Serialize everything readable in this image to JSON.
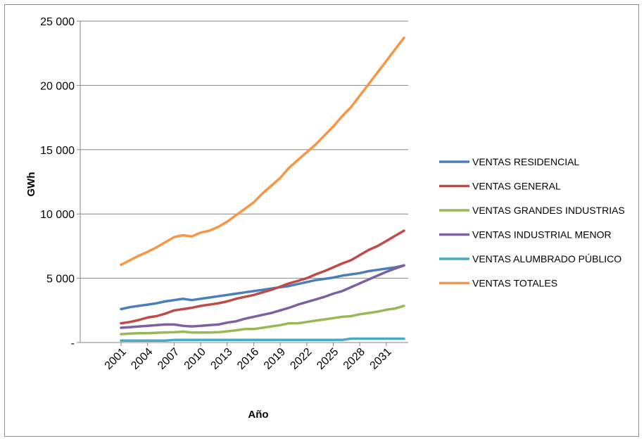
{
  "chart_data": {
    "type": "line",
    "xlabel": "Año",
    "ylabel": "GWh",
    "ylim": [
      0,
      25000
    ],
    "y_ticks": [
      {
        "value": 0,
        "label": "-"
      },
      {
        "value": 5000,
        "label": "5 000"
      },
      {
        "value": 10000,
        "label": "10 000"
      },
      {
        "value": 15000,
        "label": "15 000"
      },
      {
        "value": 20000,
        "label": "20 000"
      },
      {
        "value": 25000,
        "label": "25 000"
      }
    ],
    "grid": true,
    "legend_position": "right",
    "x": [
      2001,
      2002,
      2003,
      2004,
      2005,
      2006,
      2007,
      2008,
      2009,
      2010,
      2011,
      2012,
      2013,
      2014,
      2015,
      2016,
      2017,
      2018,
      2019,
      2020,
      2021,
      2022,
      2023,
      2024,
      2025,
      2026,
      2027,
      2028,
      2029,
      2030,
      2031,
      2032,
      2033
    ],
    "x_tick_labels": [
      "2001",
      "2004",
      "2007",
      "2010",
      "2013",
      "2016",
      "2019",
      "2022",
      "2025",
      "2028",
      "2031"
    ],
    "series": [
      {
        "name": "VENTAS RESIDENCIAL",
        "color": "#4a7ebb",
        "values": [
          2600,
          2750,
          2850,
          2950,
          3050,
          3200,
          3300,
          3400,
          3300,
          3400,
          3500,
          3600,
          3700,
          3800,
          3900,
          4000,
          4100,
          4200,
          4300,
          4400,
          4550,
          4700,
          4850,
          4950,
          5050,
          5200,
          5300,
          5400,
          5550,
          5650,
          5750,
          5850,
          6000
        ]
      },
      {
        "name": "VENTAS GENERAL",
        "color": "#be4b48",
        "values": [
          1500,
          1600,
          1750,
          1950,
          2050,
          2250,
          2500,
          2600,
          2700,
          2850,
          2950,
          3050,
          3200,
          3400,
          3550,
          3700,
          3900,
          4100,
          4350,
          4600,
          4800,
          5000,
          5300,
          5550,
          5850,
          6150,
          6400,
          6800,
          7200,
          7500,
          7900,
          8300,
          8700
        ]
      },
      {
        "name": "VENTAS GRANDES INDUSTRIAS",
        "color": "#98b954",
        "values": [
          650,
          700,
          720,
          730,
          760,
          790,
          800,
          850,
          780,
          780,
          780,
          800,
          870,
          950,
          1050,
          1050,
          1150,
          1250,
          1350,
          1500,
          1500,
          1600,
          1700,
          1800,
          1900,
          2000,
          2050,
          2200,
          2300,
          2400,
          2550,
          2650,
          2850
        ]
      },
      {
        "name": "VENTAS INDUSTRIAL MENOR",
        "color": "#7d60a0",
        "values": [
          1150,
          1200,
          1250,
          1300,
          1350,
          1400,
          1400,
          1300,
          1250,
          1300,
          1350,
          1400,
          1550,
          1650,
          1850,
          2000,
          2150,
          2300,
          2500,
          2700,
          2950,
          3150,
          3350,
          3550,
          3800,
          4000,
          4300,
          4600,
          4900,
          5200,
          5500,
          5750,
          6000
        ]
      },
      {
        "name": "VENTAS ALUMBRADO PÚBLICO",
        "color": "#46aac5",
        "values": [
          150,
          150,
          150,
          150,
          150,
          150,
          200,
          200,
          200,
          200,
          200,
          200,
          200,
          200,
          200,
          200,
          200,
          200,
          200,
          200,
          200,
          200,
          200,
          200,
          200,
          200,
          300,
          300,
          300,
          300,
          300,
          300,
          300
        ]
      },
      {
        "name": "VENTAS TOTALES",
        "color": "#f79646",
        "values": [
          6050,
          6400,
          6750,
          7050,
          7400,
          7800,
          8200,
          8350,
          8250,
          8550,
          8700,
          9000,
          9400,
          9900,
          10400,
          10900,
          11600,
          12200,
          12800,
          13600,
          14200,
          14800,
          15400,
          16100,
          16800,
          17600,
          18300,
          19200,
          20100,
          21000,
          21900,
          22800,
          23700
        ]
      }
    ]
  }
}
